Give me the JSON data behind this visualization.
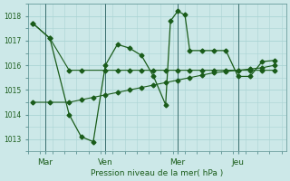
{
  "title": "",
  "xlabel": "Pression niveau de la mer( hPa )",
  "bg_color": "#cce8e8",
  "grid_color": "#aad4d4",
  "line_color": "#1a5c1a",
  "ylim": [
    1012.5,
    1018.5
  ],
  "xlim": [
    -0.2,
    10.5
  ],
  "xtick_labels": [
    "Mar",
    "Ven",
    "Mer",
    "Jeu"
  ],
  "xtick_positions": [
    0.5,
    3.0,
    6.0,
    8.5
  ],
  "ytick_values": [
    1013,
    1014,
    1015,
    1016,
    1017,
    1018
  ],
  "vline_positions": [
    0.5,
    3.0,
    6.0,
    8.5
  ],
  "series1_x": [
    0.0,
    0.7,
    1.5,
    2.0,
    3.0,
    3.5,
    4.0,
    4.5,
    5.0,
    5.5,
    6.0,
    6.5,
    7.0,
    7.5,
    8.0,
    8.5,
    9.0,
    9.5,
    10.0
  ],
  "series1_y": [
    1017.7,
    1017.1,
    1015.8,
    1015.8,
    1015.8,
    1015.8,
    1015.8,
    1015.8,
    1015.8,
    1015.8,
    1015.8,
    1015.8,
    1015.8,
    1015.8,
    1015.8,
    1015.8,
    1015.8,
    1015.8,
    1015.8
  ],
  "series2_x": [
    0.0,
    0.7,
    1.5,
    2.0,
    2.5,
    3.0,
    3.5,
    4.0,
    4.5,
    5.0,
    5.5,
    5.7,
    6.0,
    6.3,
    6.5,
    7.0,
    7.5,
    8.0,
    8.5,
    9.0,
    9.5,
    10.0
  ],
  "series2_y": [
    1017.7,
    1017.1,
    1014.0,
    1013.1,
    1012.9,
    1016.0,
    1016.85,
    1016.7,
    1016.4,
    1015.55,
    1014.4,
    1017.8,
    1018.2,
    1018.05,
    1016.6,
    1016.6,
    1016.6,
    1016.6,
    1015.55,
    1015.55,
    1016.15,
    1016.2
  ],
  "series3_x": [
    0.0,
    0.7,
    1.5,
    2.0,
    2.5,
    3.0,
    3.5,
    4.0,
    4.5,
    5.0,
    5.5,
    6.0,
    6.5,
    7.0,
    7.5,
    8.0,
    8.5,
    9.0,
    9.5,
    10.0
  ],
  "series3_y": [
    1014.5,
    1014.5,
    1014.5,
    1014.6,
    1014.7,
    1014.8,
    1014.9,
    1015.0,
    1015.1,
    1015.2,
    1015.3,
    1015.4,
    1015.5,
    1015.6,
    1015.7,
    1015.75,
    1015.8,
    1015.85,
    1015.9,
    1016.0
  ],
  "markersize": 2.5
}
